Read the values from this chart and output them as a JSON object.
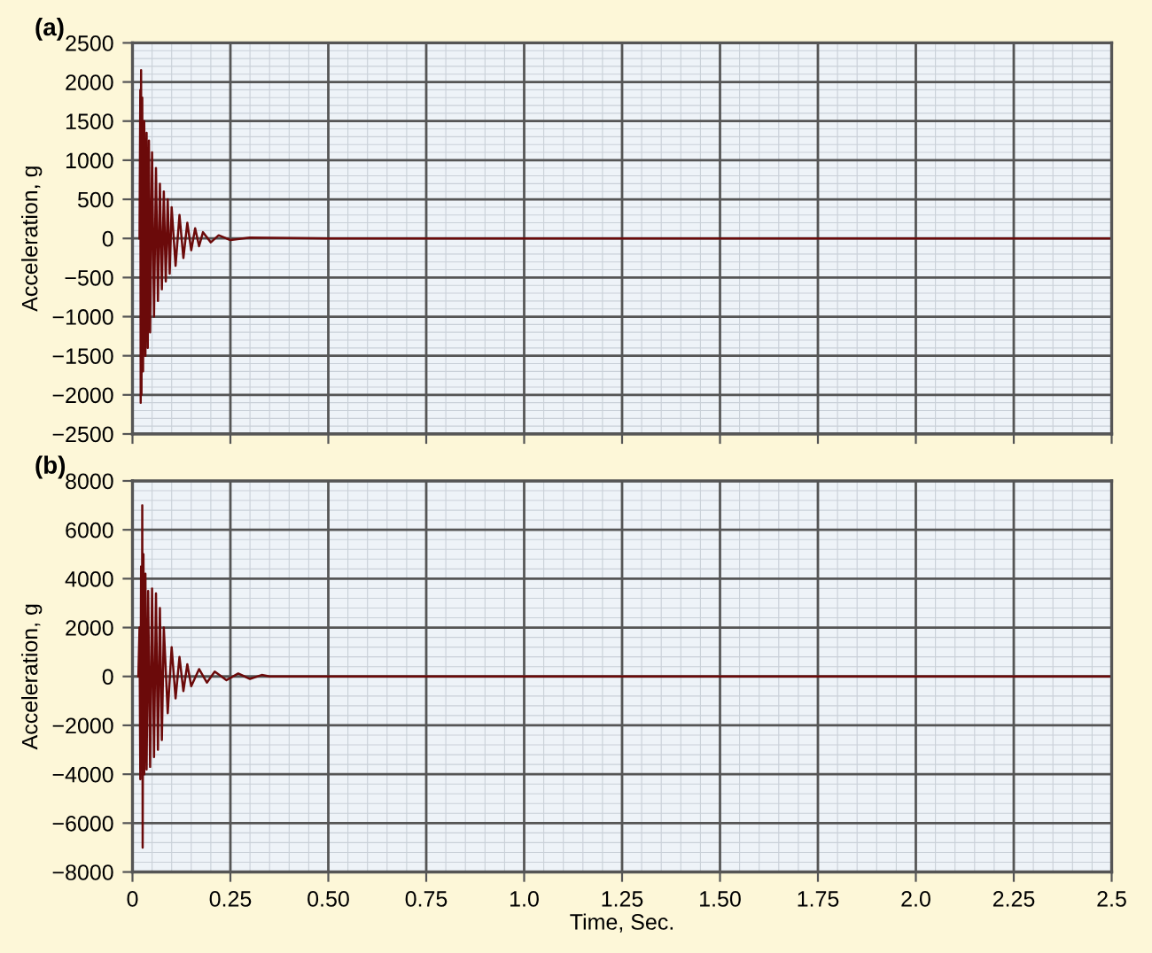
{
  "chart_data": [
    {
      "type": "line",
      "title": "(a)",
      "ylabel": "Acceleration, g",
      "xlim": [
        0,
        2.5
      ],
      "ylim": [
        -2500,
        2500
      ],
      "xticks": [
        0,
        0.25,
        0.5,
        0.75,
        1,
        1.25,
        1.5,
        1.75,
        2,
        2.25,
        2.5
      ],
      "yticks": [
        {
          "value": -2500,
          "label": "−2500"
        },
        {
          "value": -2000,
          "label": "−2000"
        },
        {
          "value": -1500,
          "label": "−1500"
        },
        {
          "value": -1000,
          "label": "−1000"
        },
        {
          "value": -500,
          "label": "−500"
        },
        0,
        500,
        1000,
        1500,
        2000,
        2500
      ],
      "tick_labels": "y",
      "grid": true,
      "marker": "none",
      "series": [
        {
          "color": "#6b0a0a",
          "x": [
            0.018,
            0.02,
            0.021,
            0.022,
            0.023,
            0.025,
            0.027,
            0.03,
            0.033,
            0.036,
            0.039,
            0.042,
            0.045,
            0.05,
            0.055,
            0.06,
            0.065,
            0.07,
            0.075,
            0.08,
            0.085,
            0.09,
            0.095,
            0.1,
            0.11,
            0.12,
            0.13,
            0.14,
            0.15,
            0.16,
            0.17,
            0.18,
            0.2,
            0.22,
            0.25,
            0.3,
            0.5,
            1.0,
            1.5,
            2.0,
            2.5
          ],
          "values": [
            0,
            1900,
            -2100,
            2150,
            -2000,
            1800,
            -1700,
            1500,
            -1500,
            1350,
            -1400,
            1250,
            -1200,
            1100,
            -1000,
            900,
            -800,
            700,
            -650,
            600,
            -550,
            500,
            -450,
            400,
            -350,
            300,
            -250,
            200,
            -150,
            130,
            -100,
            80,
            -50,
            40,
            -20,
            10,
            0,
            0,
            0,
            0,
            0
          ]
        }
      ]
    },
    {
      "type": "line",
      "title": "(b)",
      "xlabel": "Time, Sec.",
      "ylabel": "Acceleration, g",
      "xlim": [
        0,
        2.5
      ],
      "ylim": [
        -8000,
        8000
      ],
      "xticks": [
        0,
        0.25,
        {
          "value": 0.5,
          "label": "0.50"
        },
        0.75,
        {
          "value": 1,
          "label": "1.0"
        },
        1.25,
        {
          "value": 1.5,
          "label": "1.50"
        },
        1.75,
        {
          "value": 2,
          "label": "2.0"
        },
        2.25,
        2.5
      ],
      "yticks": [
        {
          "value": -8000,
          "label": "−8000"
        },
        {
          "value": -6000,
          "label": "−6000"
        },
        {
          "value": -4000,
          "label": "−4000"
        },
        {
          "value": -2000,
          "label": "−2000"
        },
        0,
        2000,
        4000,
        6000,
        8000
      ],
      "grid": true,
      "marker": "none",
      "series": [
        {
          "color": "#6b0a0a",
          "x": [
            0.015,
            0.018,
            0.02,
            0.022,
            0.024,
            0.025,
            0.026,
            0.028,
            0.03,
            0.033,
            0.036,
            0.04,
            0.045,
            0.05,
            0.055,
            0.06,
            0.065,
            0.07,
            0.075,
            0.08,
            0.09,
            0.1,
            0.11,
            0.12,
            0.13,
            0.14,
            0.15,
            0.17,
            0.19,
            0.21,
            0.24,
            0.27,
            0.3,
            0.33,
            0.35,
            0.5,
            1.0,
            1.5,
            2.0,
            2.5
          ],
          "values": [
            0,
            2000,
            -4200,
            4500,
            -3500,
            7000,
            -7000,
            5000,
            -4000,
            4200,
            -3800,
            3500,
            -3700,
            3600,
            -3300,
            3400,
            -3000,
            2800,
            -2600,
            2000,
            -1500,
            1200,
            -900,
            800,
            -600,
            500,
            -400,
            300,
            -250,
            200,
            -150,
            120,
            -100,
            60,
            0,
            0,
            0,
            0,
            0,
            0
          ]
        }
      ]
    }
  ]
}
